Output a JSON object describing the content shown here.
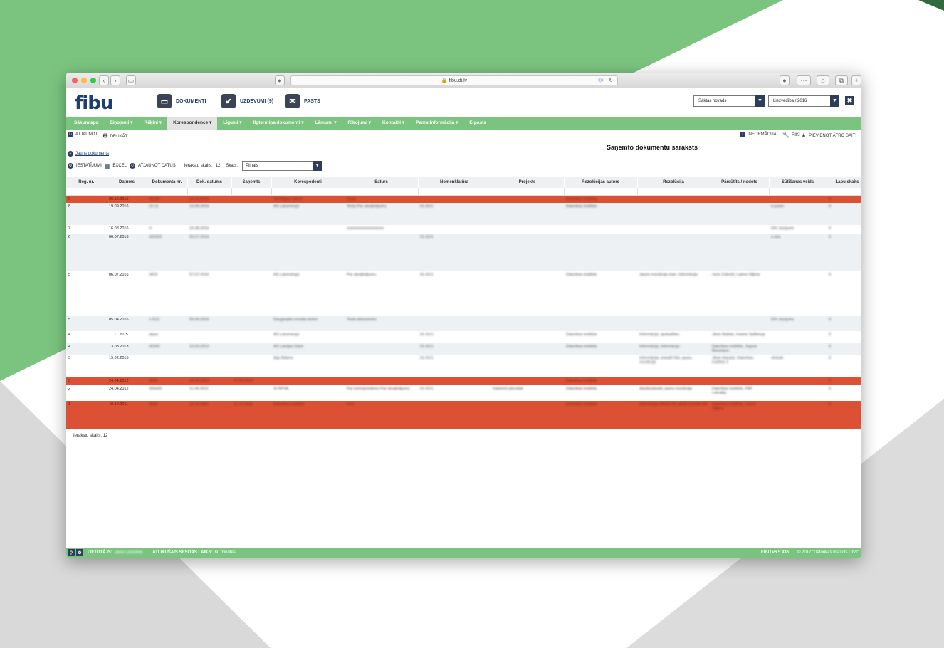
{
  "browser": {
    "url": "fibu.di.lv",
    "dots": [
      "#fc605c",
      "#fdbc40",
      "#34c84a"
    ]
  },
  "app": {
    "logo": "fibu",
    "header_buttons": [
      {
        "label": "DOKUMENTI",
        "icon": "folder-icon"
      },
      {
        "label": "UZDEVUMI (9)",
        "icon": "tasks-icon"
      },
      {
        "label": "PASTS",
        "icon": "mail-icon"
      }
    ],
    "municipality_select": "Saktas novads",
    "institution_select": "Liezvedība / 2016",
    "close": "✖"
  },
  "menu": [
    {
      "label": "Sākumlapa",
      "arrow": false
    },
    {
      "label": "Ziņojumi",
      "arrow": true
    },
    {
      "label": "Rēķini",
      "arrow": true
    },
    {
      "label": "Korespondence",
      "arrow": true,
      "active": true
    },
    {
      "label": "Līgumi",
      "arrow": true
    },
    {
      "label": "Ilgtermiņa dokumenti",
      "arrow": true
    },
    {
      "label": "Lēmumi",
      "arrow": true
    },
    {
      "label": "Rīkojumi",
      "arrow": true
    },
    {
      "label": "Kontakti",
      "arrow": true
    },
    {
      "label": "Pamatinformācija",
      "arrow": true
    },
    {
      "label": "E-pasts",
      "arrow": false
    }
  ],
  "toolbar": {
    "refresh": "ATJAUNOT",
    "print": "DRUKĀT",
    "info": "INFORMĀCIJA",
    "tools": "RĪKI",
    "add_link": "PIEVIENOT ĀTRO SAITI"
  },
  "page_title": "Saņemto dokumentu saraksts",
  "new_doc": "Jauns dokuments",
  "controls": {
    "settings": "IESTATĪJUMI",
    "excel": "EXCEL",
    "refresh_data": "ATJAUNOT DATUS",
    "count_label": "Ierakstu skaits:",
    "count": "12",
    "view_label": "Skats:",
    "view_value": "Pilnais"
  },
  "columns": [
    "Reģ. nr.",
    "Datums",
    "Dokumenta nr.",
    "Dok. datums",
    "Saņemts",
    "Korespodenti",
    "Saturs",
    "Nomenklatūra",
    "Projekts",
    "Rezolūcijas autors",
    "Rezolūcija",
    "Pārsūtīts / nodots",
    "Sūtīšanas veids",
    "Lapu skaits"
  ],
  "rows": [
    {
      "style": "red",
      "h": 9,
      "cells": [
        "9",
        "20.10.2016",
        "41235",
        "12.10.2016",
        "",
        "SIA Rīgas ūdens",
        "Testa",
        "",
        "",
        "Datorikas institūts",
        "",
        "",
        "",
        "0"
      ]
    },
    {
      "style": "alt",
      "h": 31,
      "cells": [
        "8",
        "19.09.2016",
        "22-11",
        "13.09.2016",
        "",
        "AS Latvenergo",
        "Testa Par atvaļinājumu",
        "01-01/1",
        "",
        "Datorikas institūts",
        "",
        "",
        "e-pasts",
        "0"
      ]
    },
    {
      "style": "",
      "h": 12,
      "cells": [
        "7",
        "16.08.2016",
        "/1",
        "16.08.2016",
        "",
        "",
        "xxxxxxxxxxxxxxxxxxx",
        "",
        "",
        "",
        "",
        "",
        "DIV ziņojums",
        "0"
      ]
    },
    {
      "style": "alt",
      "h": 53,
      "cells": [
        "6",
        "06.07.2016",
        "432423",
        "05.07.2016",
        "",
        "",
        "",
        "01-01/1",
        "",
        "",
        "",
        "",
        "e-doc",
        "0"
      ]
    },
    {
      "style": "",
      "h": 63,
      "cells": [
        "5",
        "06.07.2016",
        "3423",
        "07.07.2016",
        "",
        "AS Latvenergo",
        "Par atvaļinājumu",
        "01-01/1",
        "",
        "Datorikas institūts",
        "Jaunu rezolūcija man, informācija",
        "Juris Zvārnīš, Laima Viļķina",
        "",
        "0"
      ]
    },
    {
      "style": "alt",
      "h": 21,
      "cells": [
        "5",
        "05.04.2016",
        "1-01/1",
        "05.04.2016",
        "",
        "Daugavpils novada dome",
        "Testa dokuments",
        "",
        "",
        "",
        "",
        "",
        "DIV ziņojums",
        "0"
      ]
    },
    {
      "style": "",
      "h": 17,
      "cells": [
        "4",
        "11.11.2015",
        "aipas",
        "",
        "",
        "AS Latvenergo",
        "",
        "01-01/1",
        "",
        "Datorikas institūts",
        "Informācija, apskatīties",
        "Jānis Baltais, Imants Spilbergs",
        "",
        "0"
      ]
    },
    {
      "style": "alt",
      "h": 15,
      "cells": [
        "4",
        "13.03.2013",
        "42243",
        "13.03.2013",
        "",
        "AS Latvijas Gāze",
        "",
        "01-01/1",
        "",
        "Datorikas institūts",
        "Informācija, informācija",
        "Datorikas institūts, Jogura Mezetane",
        "",
        "0"
      ]
    },
    {
      "style": "",
      "h": 32,
      "cells": [
        "3",
        "19.02.2015",
        "",
        "",
        "",
        "Aija Ādams",
        "",
        "01-01/1",
        "",
        "",
        "Informācija, izskatīt līdz, jaunu rezolūcija",
        "Jānis Klaviņš, Datorikas institūts 2",
        "vēstule",
        "0"
      ]
    },
    {
      "style": "red",
      "h": 11,
      "cells": [
        "3",
        "24.04.2012",
        "4234",
        "18.04.2012",
        "17.04.2012",
        "",
        "",
        "",
        "",
        "Datorikas institūts",
        "",
        "",
        "",
        "0"
      ]
    },
    {
      "style": "",
      "h": 22,
      "cells": [
        "2",
        "24.04.2012",
        "435435",
        "11.04.2012",
        "",
        "SI RPVA",
        "Par korespondenci Par atvaļinājumu",
        "01-01/1",
        "Galvenā pārvalde",
        "Datorikas institūts",
        "dasdasdasda, jaunu rezolūcija",
        "Datorikas institūts, PBF Latvalija",
        "",
        "0"
      ]
    },
    {
      "style": "red",
      "h": 40,
      "cells": [
        "1",
        "19.12.2011",
        "4234",
        "14.12.2011",
        "21.12.2011",
        "Datorikas institūts",
        "new",
        "",
        "",
        "Datorikas institūts",
        "Informācija Rīkots līd sahlat izskatīt līdz",
        "Datorikas institūts, Laima Viļķina",
        "",
        "0"
      ]
    }
  ],
  "footer_count_label": "Ierakstu skaits:",
  "footer_count": "12",
  "status": {
    "user_label": "LIETOTĀJS:",
    "user": "Jānis Liezveds",
    "session_label": "ATLIKUŠAIS SESIJAS LAIKS:",
    "session": "60 minūtes",
    "version": "FIBU v6.5.436",
    "copyright": "© 2017 \"Datorikas institūts DIVI\""
  }
}
